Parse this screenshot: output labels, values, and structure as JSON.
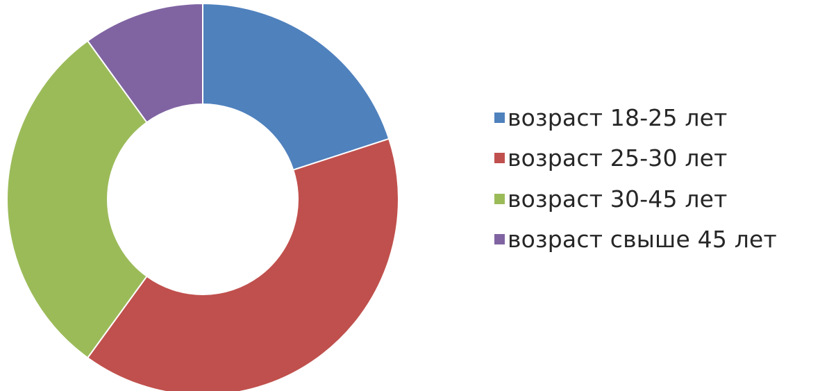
{
  "chart_data": {
    "type": "pie",
    "variant": "doughnut",
    "categories": [
      "возраст 18-25 лет",
      "возраст 25-30 лет",
      "возраст 30-45 лет",
      "возраст свыше 45 лет"
    ],
    "values": [
      20,
      40,
      30,
      10
    ],
    "colors": [
      "#4F81BD",
      "#C0504D",
      "#9BBB59",
      "#8064A2"
    ],
    "legend_position": "right",
    "start_angle": "top",
    "direction": "clockwise",
    "title": ""
  }
}
